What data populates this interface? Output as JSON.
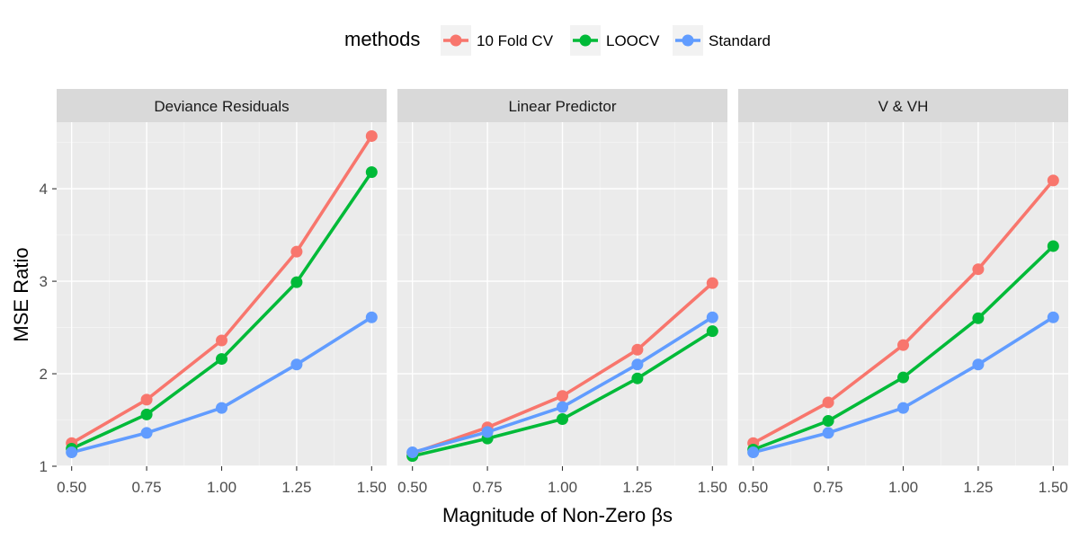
{
  "chart_data": {
    "type": "line",
    "xlabel": "Magnitude of Non-Zero βs",
    "ylabel": "MSE Ratio",
    "x": [
      0.5,
      0.75,
      1.0,
      1.25,
      1.5
    ],
    "x_tick_labels": [
      "0.50",
      "0.75",
      "1.00",
      "1.25",
      "1.50"
    ],
    "y_ticks": [
      1,
      2,
      3,
      4
    ],
    "y_tick_labels": [
      "1",
      "2",
      "3",
      "4"
    ],
    "xlim": [
      0.45,
      1.55
    ],
    "ylim": [
      1.0,
      4.72
    ],
    "grid": true,
    "legend": {
      "title": "methods",
      "position": "top",
      "entries": [
        {
          "name": "10 Fold CV",
          "color": "#F8766D"
        },
        {
          "name": "LOOCV",
          "color": "#00BA38"
        },
        {
          "name": "Standard",
          "color": "#619CFF"
        }
      ]
    },
    "panels": [
      {
        "title": "Deviance Residuals",
        "series": [
          {
            "name": "10 Fold CV",
            "values": [
              1.25,
              1.72,
              2.36,
              3.32,
              4.57
            ]
          },
          {
            "name": "LOOCV",
            "values": [
              1.19,
              1.56,
              2.16,
              2.99,
              4.18
            ]
          },
          {
            "name": "Standard",
            "values": [
              1.15,
              1.36,
              1.63,
              2.1,
              2.61
            ]
          }
        ]
      },
      {
        "title": "Linear Predictor",
        "series": [
          {
            "name": "10 Fold CV",
            "values": [
              1.14,
              1.42,
              1.76,
              2.26,
              2.98
            ]
          },
          {
            "name": "LOOCV",
            "values": [
              1.11,
              1.3,
              1.51,
              1.95,
              2.46
            ]
          },
          {
            "name": "Standard",
            "values": [
              1.15,
              1.37,
              1.64,
              2.1,
              2.61
            ]
          }
        ]
      },
      {
        "title": "V & VH",
        "series": [
          {
            "name": "10 Fold CV",
            "values": [
              1.25,
              1.69,
              2.31,
              3.13,
              4.09
            ]
          },
          {
            "name": "LOOCV",
            "values": [
              1.18,
              1.49,
              1.96,
              2.6,
              3.38
            ]
          },
          {
            "name": "Standard",
            "values": [
              1.15,
              1.36,
              1.63,
              2.1,
              2.61
            ]
          }
        ]
      }
    ]
  }
}
